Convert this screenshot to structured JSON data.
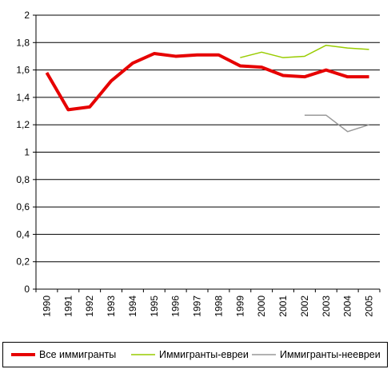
{
  "chart_data": {
    "type": "line",
    "title": "",
    "xlabel": "",
    "ylabel": "",
    "x": [
      "1990",
      "1991",
      "1992",
      "1993",
      "1994",
      "1995",
      "1996",
      "1997",
      "1998",
      "1999",
      "2000",
      "2001",
      "2002",
      "2003",
      "2004",
      "2005"
    ],
    "ylim": [
      0,
      2
    ],
    "yticks": [
      "0",
      "0,2",
      "0,4",
      "0,6",
      "0,8",
      "1",
      "1,2",
      "1,4",
      "1,6",
      "1,8",
      "2"
    ],
    "grid": "horizontal",
    "legend_position": "bottom",
    "series": [
      {
        "name": "Все иммигранты",
        "color": "#e60000",
        "values": [
          1.58,
          1.31,
          1.33,
          1.52,
          1.65,
          1.72,
          1.7,
          1.71,
          1.71,
          1.63,
          1.62,
          1.56,
          1.55,
          1.6,
          1.55,
          1.55
        ]
      },
      {
        "name": "Иммигранты-евреи",
        "color": "#99cc00",
        "values": [
          null,
          null,
          null,
          null,
          null,
          null,
          null,
          null,
          null,
          1.69,
          1.73,
          1.69,
          1.7,
          1.78,
          1.76,
          1.75
        ]
      },
      {
        "name": "Иммигранты-неевреи",
        "color": "#999999",
        "values": [
          null,
          null,
          null,
          null,
          null,
          null,
          null,
          null,
          null,
          null,
          null,
          null,
          1.27,
          1.27,
          1.15,
          1.2
        ]
      }
    ]
  }
}
